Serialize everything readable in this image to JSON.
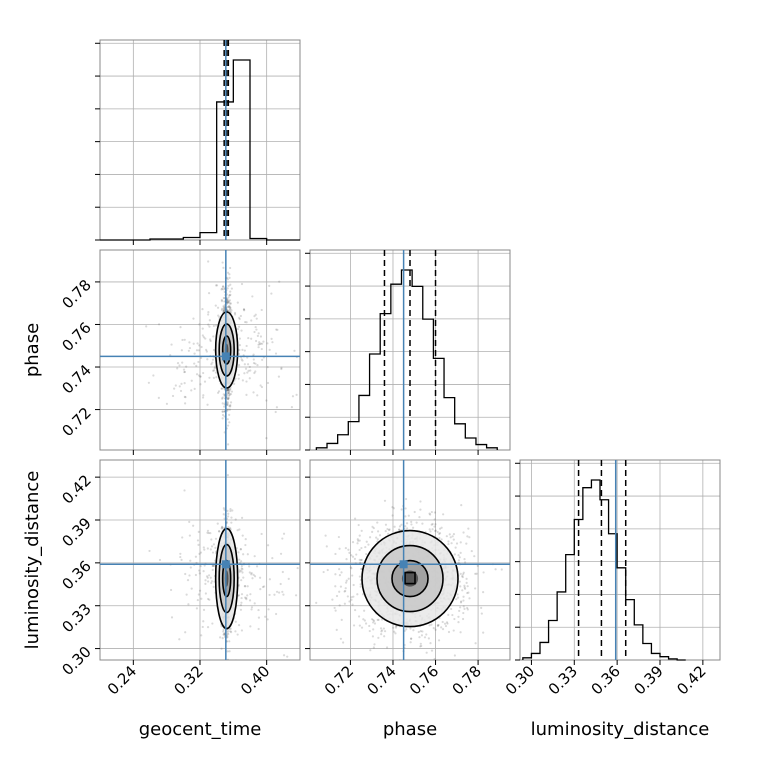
{
  "chart_data": {
    "type": "corner",
    "parameters": [
      "geocent_time",
      "phase",
      "luminosity_distance"
    ],
    "axis_labels": {
      "geocent_time": "geocent_time",
      "phase": "phase",
      "luminosity_distance": "luminosity_distance"
    },
    "ranges": {
      "geocent_time": [
        0.2,
        0.44
      ],
      "phase": [
        0.701,
        0.795
      ],
      "luminosity_distance": [
        0.292,
        0.432
      ]
    },
    "ticks": {
      "geocent_time": [
        0.24,
        0.32,
        0.4
      ],
      "phase": [
        0.72,
        0.74,
        0.76,
        0.78
      ],
      "luminosity_distance": [
        0.3,
        0.33,
        0.36,
        0.39,
        0.42
      ]
    },
    "tick_labels": {
      "geocent_time": [
        "0.24",
        "0.32",
        "0.40"
      ],
      "phase": [
        "0.72",
        "0.74",
        "0.76",
        "0.78"
      ],
      "luminosity_distance": [
        "0.30",
        "0.33",
        "0.36",
        "0.39",
        "0.42"
      ]
    },
    "truths": {
      "geocent_time": 0.351,
      "phase": 0.745,
      "luminosity_distance": 0.359
    },
    "quantiles": {
      "geocent_time": [
        0.349,
        0.352,
        0.354
      ],
      "phase": [
        0.736,
        0.748,
        0.76
      ],
      "luminosity_distance": [
        0.333,
        0.349,
        0.366
      ]
    },
    "histograms": {
      "geocent_time": {
        "edges": [
          0.2,
          0.22,
          0.24,
          0.26,
          0.28,
          0.3,
          0.32,
          0.34,
          0.36,
          0.38,
          0.4,
          0.42,
          0.44
        ],
        "counts": [
          0,
          0,
          0,
          2,
          2,
          5,
          15,
          280,
          365,
          3,
          0,
          0
        ]
      },
      "phase": {
        "edges": [
          0.704,
          0.709,
          0.714,
          0.719,
          0.724,
          0.729,
          0.734,
          0.739,
          0.744,
          0.749,
          0.754,
          0.759,
          0.764,
          0.769,
          0.774,
          0.779,
          0.784,
          0.789
        ],
        "counts": [
          2,
          6,
          14,
          26,
          50,
          88,
          125,
          152,
          165,
          150,
          120,
          84,
          48,
          24,
          11,
          5,
          2
        ]
      },
      "luminosity_distance": {
        "edges": [
          0.294,
          0.3,
          0.306,
          0.312,
          0.318,
          0.324,
          0.33,
          0.336,
          0.342,
          0.348,
          0.354,
          0.36,
          0.366,
          0.372,
          0.378,
          0.384,
          0.39,
          0.396,
          0.402,
          0.408
        ],
        "counts": [
          2,
          6,
          16,
          36,
          62,
          96,
          128,
          157,
          164,
          146,
          115,
          84,
          55,
          32,
          15,
          6,
          3,
          1,
          0
        ]
      }
    },
    "pairs": [
      {
        "x": "geocent_time",
        "y": "phase"
      },
      {
        "x": "geocent_time",
        "y": "luminosity_distance"
      },
      {
        "x": "phase",
        "y": "luminosity_distance"
      }
    ],
    "style": {
      "histogram_color": "#000000",
      "truth_color": "#4682b4",
      "quantile_color": "#000000",
      "grid": true,
      "grid_color": "#b0b0b0",
      "spine_color": "#888888"
    }
  }
}
